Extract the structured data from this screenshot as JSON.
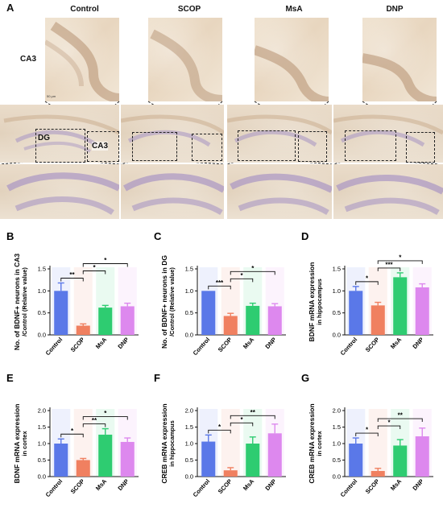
{
  "panel_a": {
    "letter": "A",
    "groups": [
      "Control",
      "SCOP",
      "MsA",
      "DNP"
    ],
    "row_labels": {
      "top": "CA3",
      "bottom": "DG"
    },
    "overview_labels": {
      "dg": "DG",
      "ca3": "CA3"
    },
    "scale_label": "50 μm"
  },
  "chart_data": [
    {
      "id": "B",
      "letter": "B",
      "type": "bar",
      "categories": [
        "Control",
        "SCOP",
        "MsA",
        "DNP"
      ],
      "values": [
        1.0,
        0.21,
        0.62,
        0.65
      ],
      "errors": [
        0.18,
        0.04,
        0.05,
        0.07
      ],
      "ylabel": "No. of BDNF+ neurons in CA3\n/Control  (Relative value)",
      "ylim": [
        0,
        1.5
      ],
      "yticks": [
        "0.0",
        "0.5",
        "1.0",
        "1.5"
      ],
      "colors": [
        "#5a78e8",
        "#f08060",
        "#2ecc71",
        "#dd88ee"
      ],
      "sig": [
        {
          "from": 0,
          "to": 1,
          "label": "**"
        },
        {
          "from": 1,
          "to": 2,
          "label": "*"
        },
        {
          "from": 1,
          "to": 3,
          "label": "*"
        }
      ]
    },
    {
      "id": "C",
      "letter": "C",
      "type": "bar",
      "categories": [
        "Control",
        "SCOP",
        "MsA",
        "DNP"
      ],
      "values": [
        1.0,
        0.43,
        0.66,
        0.65
      ],
      "errors": [
        0.0,
        0.06,
        0.06,
        0.06
      ],
      "ylabel": "No. of BDNF+ neurons in DG\n/Control  (Relative value)",
      "ylim": [
        0,
        1.5
      ],
      "yticks": [
        "0.0",
        "0.5",
        "1.0",
        "1.5"
      ],
      "colors": [
        "#5a78e8",
        "#f08060",
        "#2ecc71",
        "#dd88ee"
      ],
      "sig": [
        {
          "from": 0,
          "to": 1,
          "label": "***"
        },
        {
          "from": 1,
          "to": 2,
          "label": "*"
        },
        {
          "from": 1,
          "to": 3,
          "label": "*"
        }
      ]
    },
    {
      "id": "D",
      "letter": "D",
      "type": "bar",
      "categories": [
        "Control",
        "SCOP",
        "MsA",
        "DNP"
      ],
      "values": [
        1.0,
        0.67,
        1.31,
        1.08
      ],
      "errors": [
        0.1,
        0.07,
        0.1,
        0.08
      ],
      "ylabel": "BDNF mRNA expression\nin hippocampus",
      "ylim": [
        0,
        1.5
      ],
      "yticks": [
        "0.0",
        "0.5",
        "1.0",
        "1.5"
      ],
      "colors": [
        "#5a78e8",
        "#f08060",
        "#2ecc71",
        "#dd88ee"
      ],
      "sig": [
        {
          "from": 0,
          "to": 1,
          "label": "*"
        },
        {
          "from": 1,
          "to": 2,
          "label": "***"
        },
        {
          "from": 1,
          "to": 3,
          "label": "*"
        }
      ]
    },
    {
      "id": "E",
      "letter": "E",
      "type": "bar",
      "categories": [
        "Control",
        "SCOP",
        "MsA",
        "DNP"
      ],
      "values": [
        1.0,
        0.5,
        1.27,
        1.05
      ],
      "errors": [
        0.14,
        0.05,
        0.18,
        0.12
      ],
      "ylabel": "BDNF mRNA expression\nin cortex",
      "ylim": [
        0,
        2.0
      ],
      "yticks": [
        "0.0",
        "0.5",
        "1.0",
        "1.5",
        "2.0"
      ],
      "colors": [
        "#5a78e8",
        "#f08060",
        "#2ecc71",
        "#dd88ee"
      ],
      "sig": [
        {
          "from": 0,
          "to": 1,
          "label": "*"
        },
        {
          "from": 1,
          "to": 2,
          "label": "**"
        },
        {
          "from": 1,
          "to": 3,
          "label": "*"
        }
      ]
    },
    {
      "id": "F",
      "letter": "F",
      "type": "bar",
      "categories": [
        "Control",
        "SCOP",
        "MsA",
        "DNP"
      ],
      "values": [
        1.06,
        0.19,
        1.0,
        1.31
      ],
      "errors": [
        0.2,
        0.08,
        0.2,
        0.28
      ],
      "ylabel": "CREB mRNA expression\nin hippocampus",
      "ylim": [
        0,
        2.0
      ],
      "yticks": [
        "0.0",
        "0.5",
        "1.0",
        "1.5",
        "2.0"
      ],
      "colors": [
        "#5a78e8",
        "#f08060",
        "#2ecc71",
        "#dd88ee"
      ],
      "sig": [
        {
          "from": 0,
          "to": 1,
          "label": "*"
        },
        {
          "from": 1,
          "to": 2,
          "label": "*"
        },
        {
          "from": 1,
          "to": 3,
          "label": "**"
        }
      ]
    },
    {
      "id": "G",
      "letter": "G",
      "type": "bar",
      "categories": [
        "Control",
        "SCOP",
        "MsA",
        "DNP"
      ],
      "values": [
        1.0,
        0.17,
        0.94,
        1.22
      ],
      "errors": [
        0.17,
        0.08,
        0.18,
        0.25
      ],
      "ylabel": "CREB mRNA expression\nin cortex",
      "ylim": [
        0,
        2.0
      ],
      "yticks": [
        "0.0",
        "0.5",
        "1.0",
        "1.5",
        "2.0"
      ],
      "colors": [
        "#5a78e8",
        "#f08060",
        "#2ecc71",
        "#dd88ee"
      ],
      "sig": [
        {
          "from": 0,
          "to": 1,
          "label": "*"
        },
        {
          "from": 1,
          "to": 2,
          "label": "*"
        },
        {
          "from": 1,
          "to": 3,
          "label": "**"
        }
      ]
    }
  ]
}
